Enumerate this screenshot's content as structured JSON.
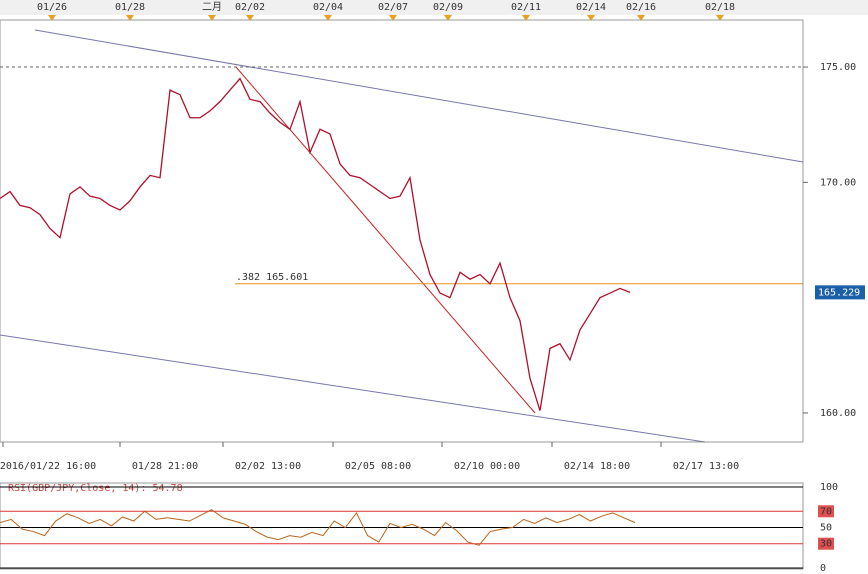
{
  "chart_data": [
    {
      "type": "line",
      "top_labels": [
        "01/26",
        "01/28",
        "二月",
        "02/02",
        "02/04",
        "02/07",
        "02/09",
        "02/11",
        "02/14",
        "02/16",
        "02/18"
      ],
      "x_labels": [
        "2016/01/22 16:00",
        "01/28 21:00",
        "02/02 13:00",
        "02/05 08:00",
        "02/10 00:00",
        "02/14 18:00",
        "02/17 13:00"
      ],
      "series": [
        {
          "color": "#b0102a",
          "values": [
            169.3,
            169.6,
            169.0,
            168.9,
            168.6,
            168.0,
            167.6,
            169.5,
            169.8,
            169.4,
            169.3,
            169.0,
            168.8,
            169.2,
            169.8,
            170.3,
            170.2,
            174.0,
            173.8,
            172.8,
            172.8,
            173.1,
            173.5,
            174.0,
            174.5,
            173.6,
            173.5,
            173.0,
            172.6,
            172.3,
            173.5,
            171.3,
            172.3,
            172.1,
            170.8,
            170.3,
            170.2,
            169.9,
            169.6,
            169.3,
            169.4,
            170.2,
            167.5,
            166.0,
            165.2,
            165.0,
            166.1,
            165.8,
            166.0,
            165.6,
            166.5,
            165.0,
            164.0,
            161.5,
            160.1,
            162.8,
            163.0,
            162.3,
            163.6,
            164.3,
            165.0,
            165.2,
            165.4,
            165.229
          ]
        }
      ],
      "ylim": [
        158.74,
        177.04
      ],
      "yticks": [
        {
          "value": 160,
          "label": "160.00"
        },
        {
          "value": 170,
          "label": "170.00"
        },
        {
          "value": 175,
          "label": "175.00"
        }
      ],
      "fib_level": 165.601,
      "fib_label": ".382 165.601",
      "price_label": "165.229"
    },
    {
      "type": "line",
      "title": "RSI(GBP/JPY,Close, 14): 54.78",
      "series": [
        {
          "color": "#b8651c",
          "values": [
            56,
            60,
            48,
            45,
            40,
            58,
            67,
            62,
            55,
            60,
            52,
            63,
            58,
            70,
            60,
            62,
            60,
            58,
            65,
            72,
            62,
            58,
            54,
            45,
            38,
            35,
            40,
            38,
            44,
            40,
            58,
            50,
            68,
            40,
            32,
            55,
            50,
            54,
            48,
            40,
            56,
            46,
            32,
            28,
            45,
            48,
            50,
            60,
            55,
            62,
            56,
            60,
            66,
            58,
            64,
            68,
            62,
            56
          ]
        }
      ],
      "ylim": [
        0,
        100
      ],
      "yticks": [
        0,
        30,
        50,
        70,
        100
      ]
    }
  ]
}
